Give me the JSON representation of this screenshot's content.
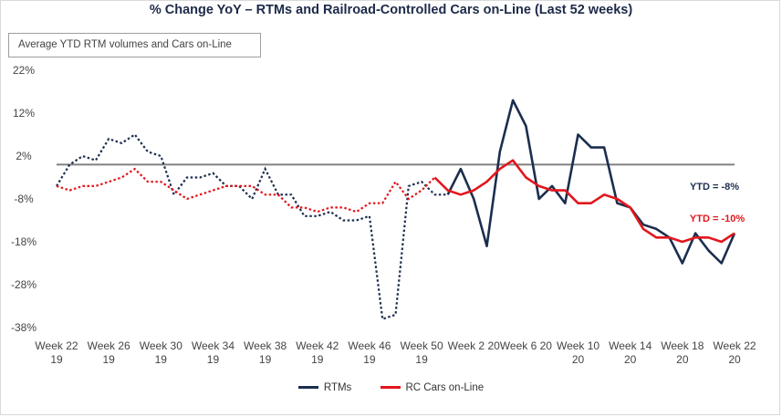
{
  "chart_data": {
    "type": "line",
    "title": "% Change YoY – RTMs and Railroad-Controlled Cars on-Line (Last 52 weeks)",
    "note": "Average YTD RTM volumes and Cars on-Line",
    "ylim": [
      -38,
      22
    ],
    "y_ticks": [
      "22%",
      "12%",
      "2%",
      "-8%",
      "-18%",
      "-28%",
      "-38%"
    ],
    "y_tick_values": [
      22,
      12,
      2,
      -8,
      -18,
      -28,
      -38
    ],
    "reference_line": 0,
    "x": [
      22,
      23,
      24,
      25,
      26,
      27,
      28,
      29,
      30,
      31,
      32,
      33,
      34,
      35,
      36,
      37,
      38,
      39,
      40,
      41,
      42,
      43,
      44,
      45,
      46,
      47,
      48,
      49,
      50,
      51,
      52,
      53,
      54,
      55,
      56,
      57,
      58,
      59,
      60,
      61,
      62,
      63,
      64,
      65,
      66,
      67,
      68,
      69,
      70,
      71,
      72,
      73,
      74
    ],
    "x_ticks": [
      {
        "week": 22,
        "line1": "Week 22",
        "line2": "19"
      },
      {
        "week": 26,
        "line1": "Week 26",
        "line2": "19"
      },
      {
        "week": 30,
        "line1": "Week 30",
        "line2": "19"
      },
      {
        "week": 34,
        "line1": "Week 34",
        "line2": "19"
      },
      {
        "week": 38,
        "line1": "Week 38",
        "line2": "19"
      },
      {
        "week": 42,
        "line1": "Week 42",
        "line2": "19"
      },
      {
        "week": 46,
        "line1": "Week 46",
        "line2": "19"
      },
      {
        "week": 50,
        "line1": "Week 50",
        "line2": "19"
      },
      {
        "week": 54,
        "line1": "Week 2 20",
        "line2": ""
      },
      {
        "week": 58,
        "line1": "Week 6 20",
        "line2": ""
      },
      {
        "week": 62,
        "line1": "Week 10",
        "line2": "20"
      },
      {
        "week": 66,
        "line1": "Week 14",
        "line2": "20"
      },
      {
        "week": 70,
        "line1": "Week 18",
        "line2": "20"
      },
      {
        "week": 74,
        "line1": "Week 22",
        "line2": "20"
      }
    ],
    "series": [
      {
        "name": "RTMs",
        "color": "#1c2e4f",
        "dashed_until_week": 52,
        "values": [
          -5,
          0,
          2,
          1,
          6,
          5,
          7,
          3,
          2,
          -7,
          -3,
          -3,
          -2,
          -5,
          -5,
          -8,
          -1,
          -7,
          -7,
          -12,
          -12,
          -11,
          -13,
          -13,
          -12,
          -36,
          -35,
          -5,
          -4,
          -7,
          -7,
          -1,
          -8,
          -19,
          3,
          15,
          9,
          -8,
          -5,
          -9,
          7,
          4,
          4,
          -9,
          -10,
          -14,
          -15,
          -17,
          -23,
          -16,
          -20,
          -23,
          -16
        ],
        "note": "YTD = -8%"
      },
      {
        "name": "RC Cars on-Line",
        "color": "#e3161c",
        "dashed_until_week": 51,
        "values": [
          -5,
          -6,
          -5,
          -5,
          -4,
          -3,
          -1,
          -4,
          -4,
          -6,
          -8,
          -7,
          -6,
          -5,
          -5,
          -5,
          -7,
          -7,
          -10,
          -10,
          -11,
          -10,
          -10,
          -11,
          -9,
          -9,
          -4,
          -8,
          -6,
          -3,
          -6,
          -7,
          -6,
          -4,
          -1,
          1,
          -3,
          -5,
          -6,
          -6,
          -9,
          -9,
          -7,
          -8,
          -10,
          -15,
          -17,
          -17,
          -18,
          -17,
          -17,
          -18,
          -16
        ],
        "note": "YTD = -10%"
      }
    ]
  }
}
